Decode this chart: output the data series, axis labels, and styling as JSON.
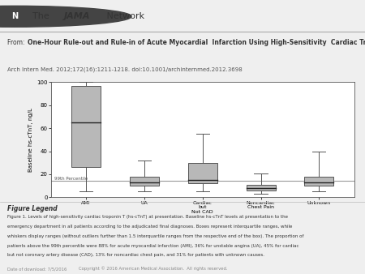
{
  "title_bold": "One-Hour Rule-out and Rule-in of Acute Myocardial  Infarction Using High-Sensitivity  Cardiac Troponin  T",
  "subtitle": "Arch Intern Med. 2012;172(16):1211-1218. doi:10.1001/archinternmed.2012.3698",
  "ylabel": "Baseline hs-cTnT, ng/L",
  "xlabel_labels": [
    "AMI",
    "UA",
    "Cardiac\nbut\nNot CAD",
    "Noncardiac\nChest Pain",
    "Unknown"
  ],
  "percentile_line": 14,
  "percentile_label": "99th Percentile",
  "ylim": [
    0,
    100
  ],
  "yticks": [
    0,
    20,
    40,
    60,
    80,
    100
  ],
  "box_color": "#b8b8b8",
  "whisker_color": "#555555",
  "median_color": "#222222",
  "percentile_color": "#999999",
  "background_color": "#efefef",
  "panel_background": "#ffffff",
  "boxes": [
    {
      "q1": 26,
      "median": 65,
      "q3": 97,
      "whisker_low": 5,
      "whisker_high": 100
    },
    {
      "q1": 10,
      "median": 13,
      "q3": 18,
      "whisker_low": 5,
      "whisker_high": 32
    },
    {
      "q1": 12,
      "median": 15,
      "q3": 30,
      "whisker_low": 5,
      "whisker_high": 55
    },
    {
      "q1": 6,
      "median": 8,
      "q3": 11,
      "whisker_low": 3,
      "whisker_high": 21
    },
    {
      "q1": 10,
      "median": 13,
      "q3": 18,
      "whisker_low": 5,
      "whisker_high": 40
    }
  ],
  "figure_legend_title": "Figure Legend",
  "figure_legend_lines": [
    "Figure 1. Levels of high-sensitivity cardiac troponin T (hs-cTnT) at presentation. Baseline hs-cTnT levels at presentation to the",
    "emergency department in all patients according to the adjudicated final diagnoses. Boxes represent interquartile ranges, while",
    "whiskers display ranges (without outliers further than 1.5 interquartile ranges from the respective end of the box). The proportion of",
    "patients above the 99th percentile were 88% for acute myocardial infarction (AMI), 36% for unstable angina (UA), 45% for cardiac",
    "but not coronary artery disease (CAD), 13% for noncardiac chest pain, and 31% for patients with unknown causes."
  ],
  "date_text": "Date of download: 7/5/2016",
  "copyright_text": "Copyright © 2016 American Medical Association.  All rights reserved."
}
